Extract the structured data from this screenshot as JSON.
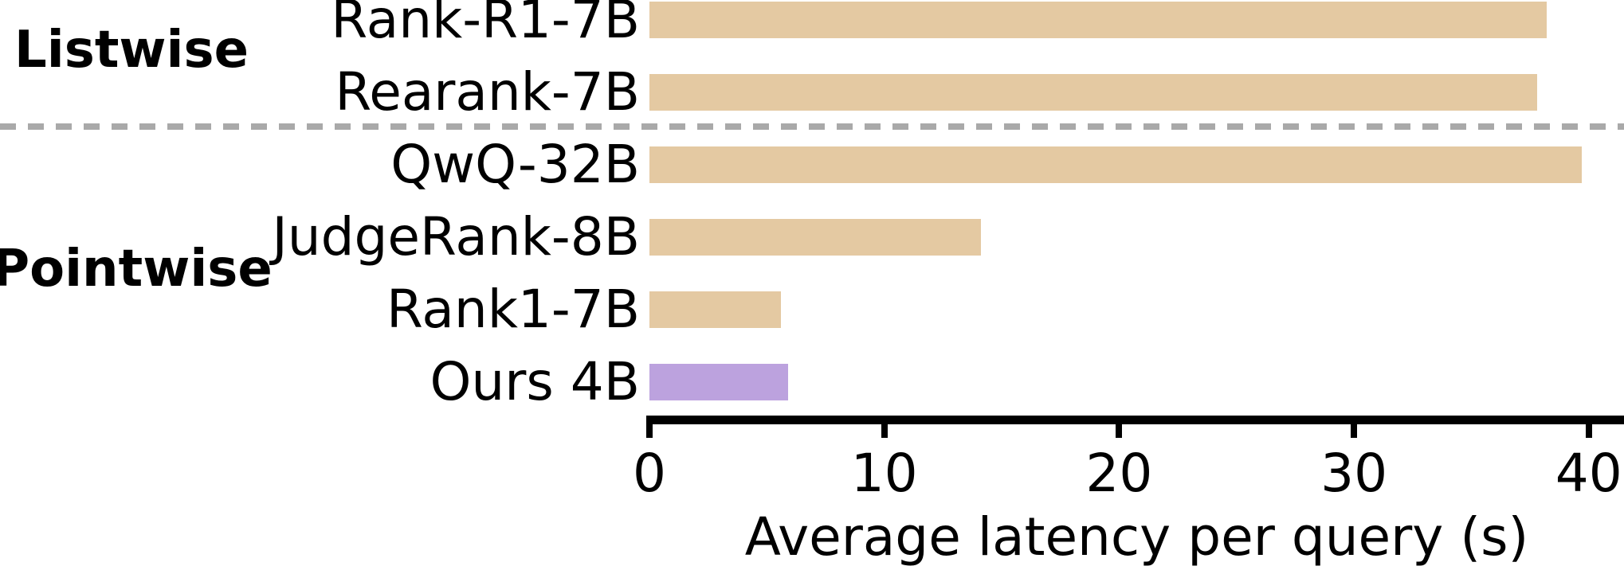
{
  "chart_data": {
    "type": "bar",
    "orientation": "horizontal",
    "title": "",
    "xlabel": "Average latency per query (s)",
    "ylabel": "",
    "xlim": [
      0,
      41.5
    ],
    "xticks": [
      0,
      10,
      20,
      30,
      40
    ],
    "xtick_labels": [
      "0",
      "10",
      "20",
      "30",
      "40"
    ],
    "grid": false,
    "legend": "none",
    "groups": [
      {
        "label": "Listwise",
        "bars": [
          {
            "label": "Rank-R1-7B",
            "value": 38.2,
            "highlight": false
          },
          {
            "label": "Rearank-7B",
            "value": 37.8,
            "highlight": false
          }
        ]
      },
      {
        "label": "Pointwise",
        "bars": [
          {
            "label": "QwQ-32B",
            "value": 39.7,
            "highlight": false
          },
          {
            "label": "JudgeRank-8B",
            "value": 14.1,
            "highlight": false
          },
          {
            "label": "Rank1-7B",
            "value": 5.6,
            "highlight": false
          },
          {
            "label": "Ours 4B",
            "value": 5.9,
            "highlight": true
          }
        ]
      }
    ],
    "separator_between_groups": "dashed",
    "colors": {
      "bar_default": "#E4C9A2",
      "bar_highlight": "#BCA2DE",
      "separator": "#A9A9A9",
      "axis": "#000000",
      "text": "#000000"
    }
  }
}
